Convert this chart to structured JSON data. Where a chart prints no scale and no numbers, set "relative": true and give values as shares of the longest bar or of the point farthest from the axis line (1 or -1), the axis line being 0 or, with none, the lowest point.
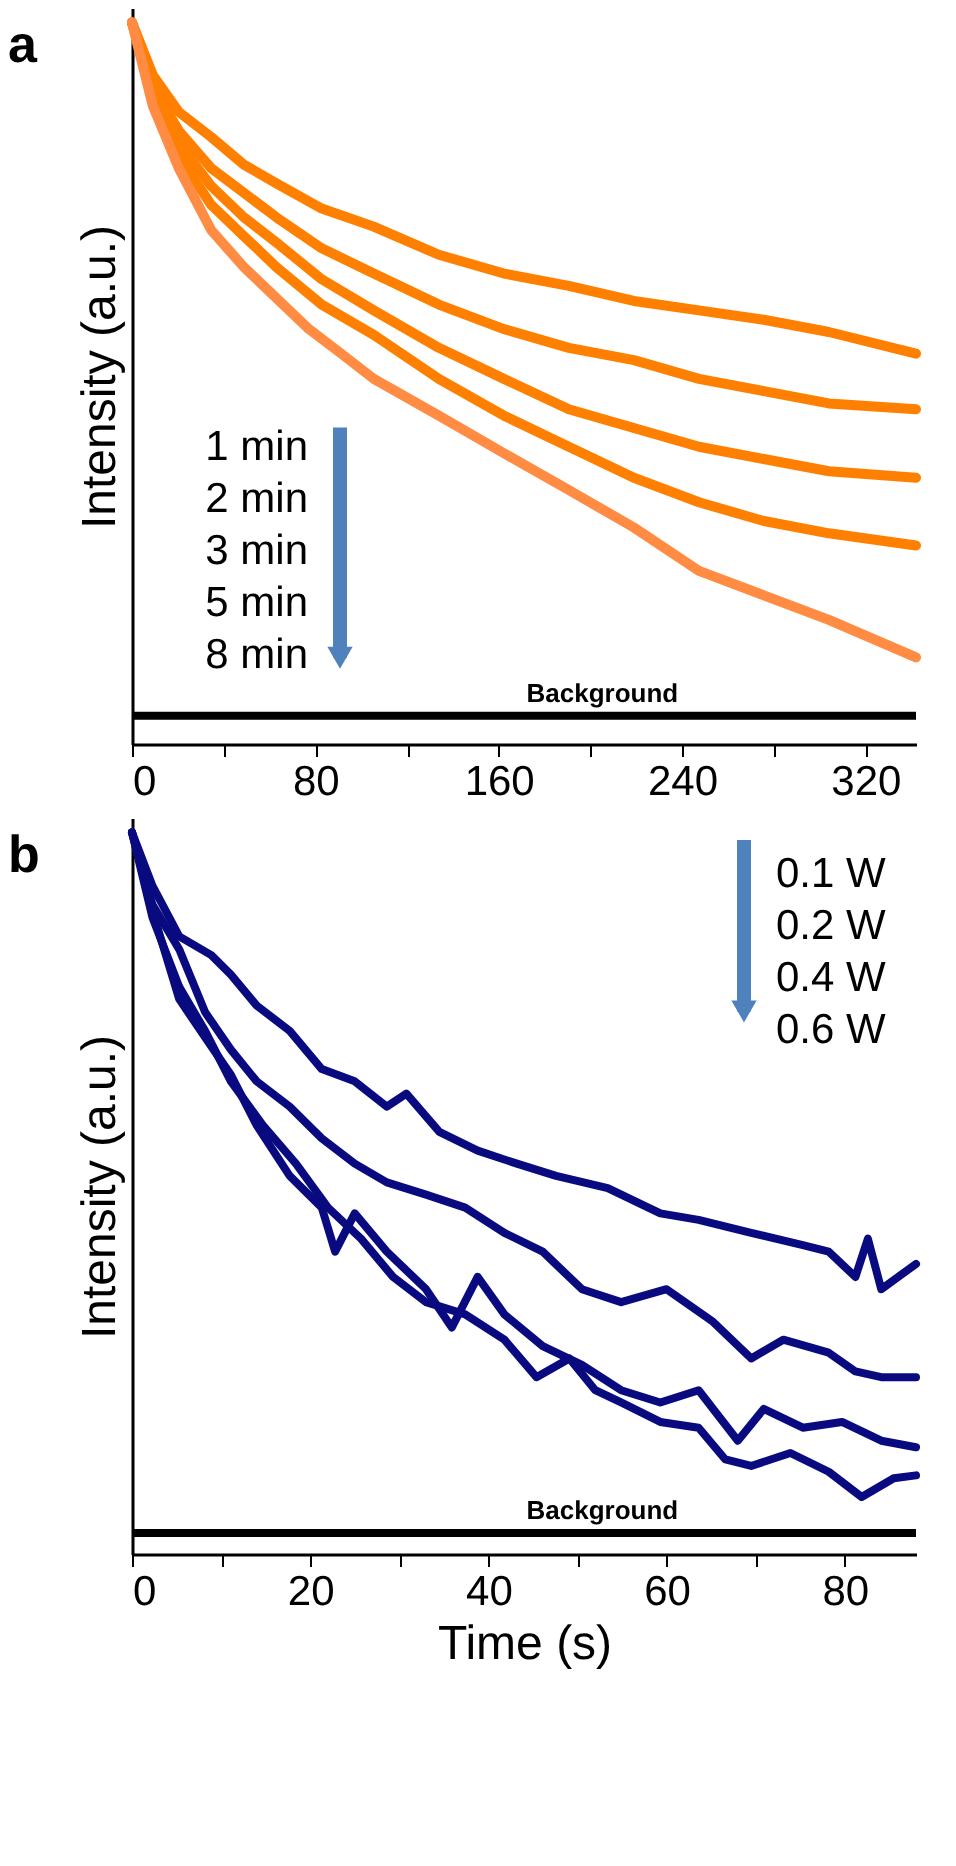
{
  "chart_data": [
    {
      "type": "line",
      "title": "a",
      "ylabel": "Intensity (a.u.)",
      "relative": true,
      "xlim": [
        0,
        342.1
      ],
      "xticks": [
        0,
        {
          "value": 40,
          "label": null
        },
        80,
        {
          "value": 120,
          "label": null
        },
        160,
        {
          "value": 200,
          "label": null
        },
        240,
        {
          "value": 280,
          "label": null
        },
        320
      ],
      "grid": false,
      "legend": false,
      "marker": "none",
      "line_style": "solid",
      "annotations": [
        "1 min",
        "2 min",
        "3 min",
        "5 min",
        "8 min"
      ],
      "ref_lines": [
        {
          "axis": "y",
          "value": 0.039,
          "label": "Background",
          "color": "#000000"
        }
      ],
      "series": [
        {
          "color": "#ff8000",
          "x": [
            0,
            9.1,
            20.4,
            34.6,
            48.8,
            63.0,
            82.8,
            105.5,
            133.9,
            162.3,
            190.6,
            219.0,
            247.4,
            275.7,
            304.1,
            342.1
          ],
          "values": [
            1.0,
            0.927,
            0.876,
            0.841,
            0.803,
            0.777,
            0.742,
            0.717,
            0.678,
            0.652,
            0.635,
            0.614,
            0.601,
            0.588,
            0.571,
            0.541
          ]
        },
        {
          "color": "#ff8000",
          "x": [
            0,
            9.1,
            20.4,
            34.6,
            48.8,
            63.0,
            82.8,
            105.5,
            133.9,
            162.3,
            190.6,
            219.0,
            247.4,
            275.7,
            304.1,
            342.1
          ],
          "values": [
            1.0,
            0.91,
            0.85,
            0.798,
            0.764,
            0.73,
            0.687,
            0.652,
            0.609,
            0.575,
            0.549,
            0.532,
            0.506,
            0.489,
            0.472,
            0.464
          ]
        },
        {
          "color": "#ff8000",
          "x": [
            0,
            9.1,
            20.4,
            34.6,
            48.8,
            63.0,
            82.8,
            105.5,
            133.9,
            162.3,
            190.6,
            219.0,
            247.4,
            275.7,
            304.1,
            342.1
          ],
          "values": [
            1.0,
            0.901,
            0.833,
            0.773,
            0.73,
            0.695,
            0.644,
            0.601,
            0.549,
            0.506,
            0.464,
            0.438,
            0.412,
            0.395,
            0.378,
            0.369
          ]
        },
        {
          "color": "#ff8000",
          "x": [
            0,
            9.1,
            20.4,
            34.6,
            48.8,
            63.0,
            82.8,
            105.5,
            133.9,
            162.3,
            190.6,
            219.0,
            247.4,
            275.7,
            304.1,
            342.1
          ],
          "values": [
            1.0,
            0.893,
            0.815,
            0.747,
            0.704,
            0.661,
            0.609,
            0.567,
            0.506,
            0.455,
            0.412,
            0.369,
            0.335,
            0.309,
            0.292,
            0.275
          ]
        },
        {
          "color": "#ff8c42",
          "x": [
            0,
            9.1,
            20.4,
            34.6,
            48.8,
            63.0,
            77.2,
            91.3,
            105.5,
            133.9,
            162.3,
            190.6,
            219.0,
            247.4,
            275.7,
            304.1,
            342.1
          ],
          "values": [
            1.0,
            0.884,
            0.798,
            0.712,
            0.661,
            0.618,
            0.575,
            0.541,
            0.506,
            0.455,
            0.403,
            0.352,
            0.3,
            0.24,
            0.206,
            0.172,
            0.12
          ]
        }
      ]
    },
    {
      "type": "line",
      "title": "b",
      "xlabel": "Time (s)",
      "ylabel": "Intensity (a.u.)",
      "relative": true,
      "xlim": [
        0,
        88
      ],
      "xticks": [
        0,
        {
          "value": 10,
          "label": null
        },
        20,
        {
          "value": 30,
          "label": null
        },
        40,
        {
          "value": 50,
          "label": null
        },
        60,
        {
          "value": 70,
          "label": null
        },
        80
      ],
      "grid": false,
      "legend": false,
      "marker": "none",
      "line_style": "solid",
      "annotations": [
        "0.1 W",
        "0.2 W",
        "0.4 W",
        "0.6 W"
      ],
      "ref_lines": [
        {
          "axis": "y",
          "value": 0.029,
          "label": "Background",
          "color": "#000000"
        }
      ],
      "series": [
        {
          "color": "#0a0a80",
          "x": [
            0,
            2.3,
            5.3,
            8.9,
            11.1,
            14.0,
            17.7,
            21.3,
            25.0,
            28.6,
            30.8,
            34.5,
            38.8,
            43.2,
            47.6,
            53.4,
            59.3,
            63.6,
            69.5,
            75.3,
            78.2,
            81.2,
            82.6,
            84.1,
            88.0
          ],
          "values": [
            1.0,
            0.926,
            0.856,
            0.83,
            0.803,
            0.76,
            0.725,
            0.672,
            0.655,
            0.62,
            0.638,
            0.585,
            0.559,
            0.541,
            0.524,
            0.507,
            0.472,
            0.463,
            0.445,
            0.428,
            0.419,
            0.384,
            0.437,
            0.367,
            0.402
          ]
        },
        {
          "color": "#0a0a80",
          "x": [
            0,
            2.3,
            5.3,
            8.2,
            11.1,
            14.0,
            17.7,
            21.3,
            25.0,
            28.6,
            33.0,
            37.4,
            41.8,
            46.1,
            50.5,
            54.9,
            60.0,
            65.1,
            69.5,
            73.1,
            78.2,
            81.2,
            84.1,
            88.0
          ],
          "values": [
            1.0,
            0.9,
            0.838,
            0.751,
            0.699,
            0.655,
            0.62,
            0.576,
            0.541,
            0.515,
            0.498,
            0.48,
            0.445,
            0.419,
            0.367,
            0.349,
            0.367,
            0.323,
            0.271,
            0.297,
            0.279,
            0.253,
            0.245,
            0.245
          ]
        },
        {
          "color": "#0a0a80",
          "x": [
            0,
            2.3,
            5.3,
            8.2,
            11.1,
            14.0,
            17.7,
            21.3,
            22.8,
            25.0,
            28.6,
            33.0,
            35.9,
            38.8,
            41.8,
            46.1,
            50.5,
            54.9,
            59.3,
            63.6,
            68.0,
            70.9,
            75.3,
            79.7,
            84.1,
            88.0
          ],
          "values": [
            1.0,
            0.891,
            0.769,
            0.716,
            0.664,
            0.594,
            0.524,
            0.48,
            0.419,
            0.472,
            0.419,
            0.367,
            0.314,
            0.384,
            0.332,
            0.288,
            0.262,
            0.227,
            0.21,
            0.227,
            0.157,
            0.201,
            0.175,
            0.183,
            0.157,
            0.148
          ]
        },
        {
          "color": "#0a0a80",
          "x": [
            0,
            2.3,
            5.3,
            8.2,
            11.1,
            14.7,
            18.4,
            22.0,
            25.7,
            29.3,
            33.0,
            37.4,
            41.8,
            45.4,
            49.1,
            52.0,
            54.9,
            59.3,
            63.6,
            66.6,
            69.5,
            73.9,
            78.2,
            81.9,
            85.5,
            88.0
          ],
          "values": [
            1.0,
            0.882,
            0.786,
            0.725,
            0.655,
            0.594,
            0.541,
            0.48,
            0.437,
            0.384,
            0.349,
            0.332,
            0.297,
            0.245,
            0.271,
            0.227,
            0.21,
            0.183,
            0.175,
            0.131,
            0.122,
            0.14,
            0.114,
            0.079,
            0.105,
            0.109
          ]
        }
      ]
    }
  ]
}
